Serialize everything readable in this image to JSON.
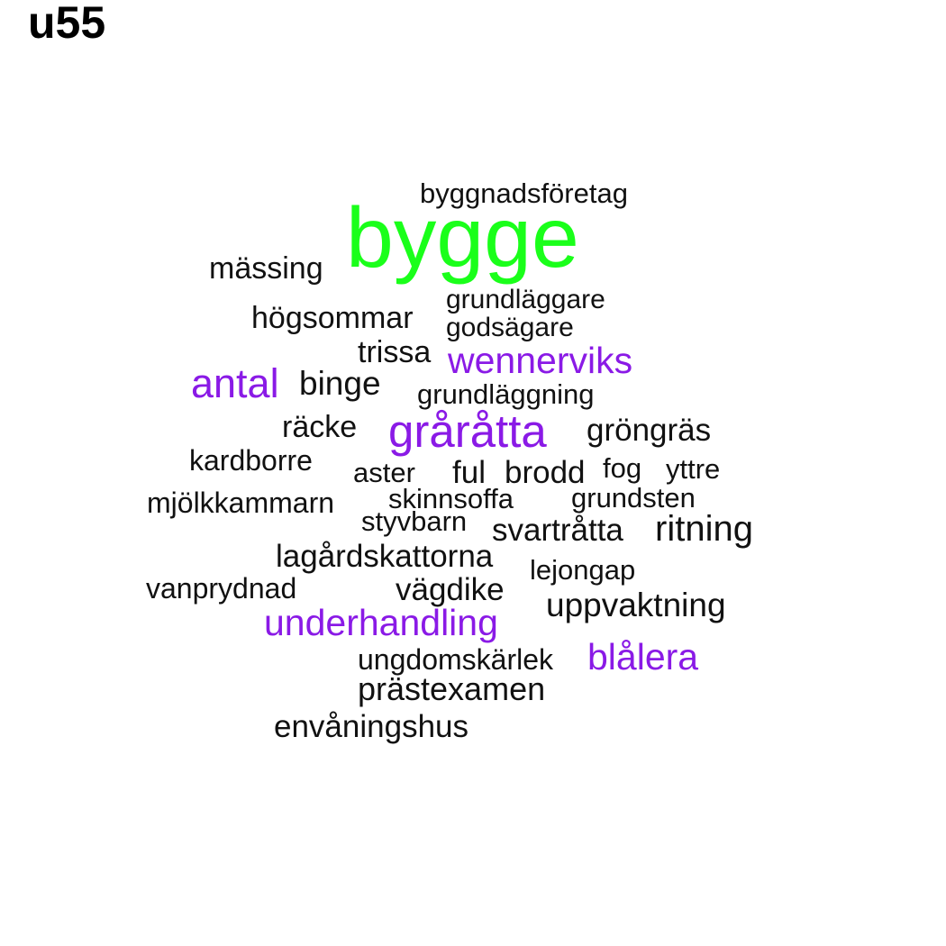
{
  "title": "u55",
  "colors": {
    "green": "#1aff1a",
    "purple": "#8a1ae6",
    "black": "#111111"
  },
  "words": [
    {
      "key": "byggnadsforetag",
      "text": "byggnadsföretag",
      "color": "black"
    },
    {
      "key": "bygge",
      "text": "bygge",
      "color": "green"
    },
    {
      "key": "massing",
      "text": "mässing",
      "color": "black"
    },
    {
      "key": "grundlaggare",
      "text": "grundläggare",
      "color": "black"
    },
    {
      "key": "hogsommar",
      "text": "högsommar",
      "color": "black"
    },
    {
      "key": "godsagare",
      "text": "godsägare",
      "color": "black"
    },
    {
      "key": "trissa",
      "text": "trissa",
      "color": "black"
    },
    {
      "key": "wennerviks",
      "text": "wennerviks",
      "color": "purple"
    },
    {
      "key": "antal",
      "text": "antal",
      "color": "purple"
    },
    {
      "key": "binge",
      "text": "binge",
      "color": "black"
    },
    {
      "key": "grundlaggning",
      "text": "grundläggning",
      "color": "black"
    },
    {
      "key": "racke",
      "text": "räcke",
      "color": "black"
    },
    {
      "key": "graratta",
      "text": "gråråtta",
      "color": "purple"
    },
    {
      "key": "grongras",
      "text": "gröngräs",
      "color": "black"
    },
    {
      "key": "kardborre",
      "text": "kardborre",
      "color": "black"
    },
    {
      "key": "aster",
      "text": "aster",
      "color": "black"
    },
    {
      "key": "ful",
      "text": "ful",
      "color": "black"
    },
    {
      "key": "brodd",
      "text": "brodd",
      "color": "black"
    },
    {
      "key": "fog",
      "text": "fog",
      "color": "black"
    },
    {
      "key": "yttre",
      "text": "yttre",
      "color": "black"
    },
    {
      "key": "mjolkkammarn",
      "text": "mjölkkammarn",
      "color": "black"
    },
    {
      "key": "skinnsoffa",
      "text": "skinnsoffa",
      "color": "black"
    },
    {
      "key": "grundsten",
      "text": "grundsten",
      "color": "black"
    },
    {
      "key": "styvbarn",
      "text": "styvbarn",
      "color": "black"
    },
    {
      "key": "svartratta",
      "text": "svartråtta",
      "color": "black"
    },
    {
      "key": "ritning",
      "text": "ritning",
      "color": "black"
    },
    {
      "key": "lagardskattorna",
      "text": "lagårdskattorna",
      "color": "black"
    },
    {
      "key": "lejongap",
      "text": "lejongap",
      "color": "black"
    },
    {
      "key": "vanprydnad",
      "text": "vanprydnad",
      "color": "black"
    },
    {
      "key": "vagdike",
      "text": "vägdike",
      "color": "black"
    },
    {
      "key": "uppvaktning",
      "text": "uppvaktning",
      "color": "black"
    },
    {
      "key": "underhandling",
      "text": "underhandling",
      "color": "purple"
    },
    {
      "key": "ungdomskarlek",
      "text": "ungdomskärlek",
      "color": "black"
    },
    {
      "key": "blalera",
      "text": "blålera",
      "color": "purple"
    },
    {
      "key": "prastexamen",
      "text": "prästexamen",
      "color": "black"
    },
    {
      "key": "envaningshus",
      "text": "envåningshus",
      "color": "black"
    }
  ]
}
